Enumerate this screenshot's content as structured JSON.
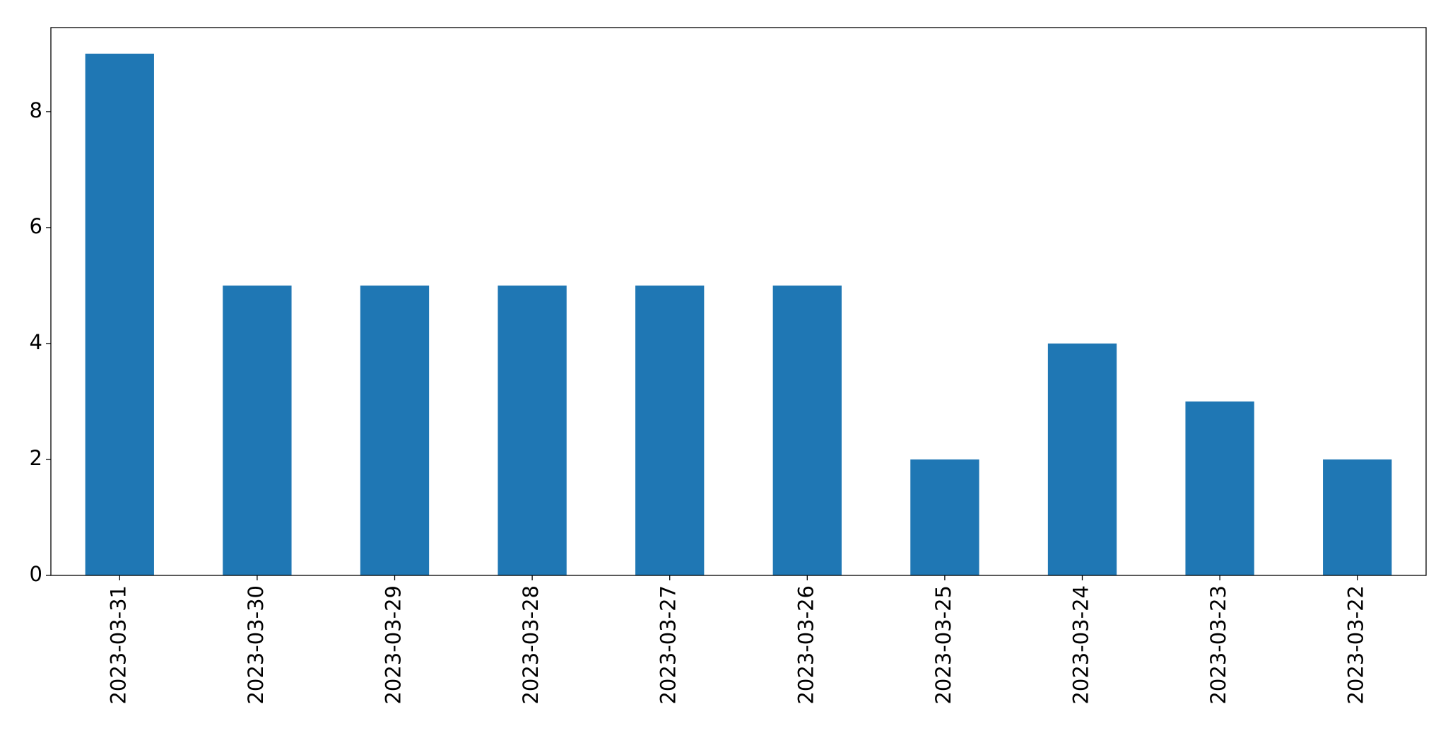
{
  "chart_data": {
    "type": "bar",
    "categories": [
      "2023-03-31",
      "2023-03-30",
      "2023-03-29",
      "2023-03-28",
      "2023-03-27",
      "2023-03-26",
      "2023-03-25",
      "2023-03-24",
      "2023-03-23",
      "2023-03-22"
    ],
    "values": [
      9,
      5,
      5,
      5,
      5,
      5,
      2,
      4,
      3,
      2
    ],
    "color": "#1f77b4",
    "ylim": [
      0,
      9.45
    ],
    "yticks": [
      0,
      2,
      4,
      6,
      8
    ],
    "grid": false
  }
}
